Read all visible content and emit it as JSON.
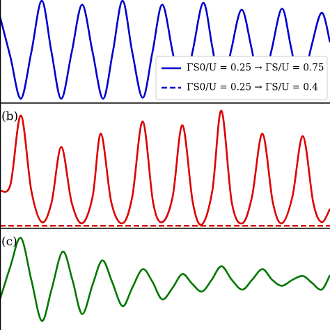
{
  "chart_data": [
    {
      "type": "line",
      "legend": "lower right",
      "xlim": [
        0,
        474
      ],
      "ylim": [
        0,
        1
      ],
      "x": [
        0,
        15,
        30,
        45,
        60,
        74,
        88,
        103,
        118,
        133,
        148,
        162,
        176,
        190,
        205,
        219,
        233,
        248,
        262,
        277,
        292,
        305,
        318,
        332,
        347,
        361,
        375,
        390,
        405,
        418,
        432,
        447,
        462,
        474
      ],
      "series": [
        {
          "name": "ΓS0/U = 0.25 → ΓS/U = 0.75",
          "color": "#0000cc",
          "dash": false,
          "values": [
            0.86,
            0.45,
            0.03,
            0.5,
            1.02,
            0.5,
            0.03,
            0.5,
            0.98,
            0.5,
            0.03,
            0.5,
            1.02,
            0.5,
            0.04,
            0.5,
            0.98,
            0.5,
            0.06,
            0.52,
            1.0,
            0.55,
            0.08,
            0.52,
            0.93,
            0.55,
            0.1,
            0.52,
            0.94,
            0.55,
            0.12,
            0.55,
            0.9,
            0.6
          ]
        },
        {
          "name": "ΓS0/U = 0.25 → ΓS/U = 0.4",
          "color": "#0000cc",
          "dash": true,
          "values": [
            null,
            null,
            null,
            null,
            null,
            null,
            null,
            null,
            null,
            null,
            null,
            null,
            null,
            null,
            null,
            null,
            null,
            null,
            null,
            null,
            null,
            null,
            null,
            null,
            null,
            null,
            null,
            null,
            null,
            null,
            null,
            null,
            null,
            null
          ]
        }
      ]
    },
    {
      "type": "line",
      "label": "(b)",
      "xlim": [
        0,
        474
      ],
      "ylim": [
        0,
        1
      ],
      "x": [
        0,
        15,
        30,
        45,
        60,
        74,
        88,
        103,
        118,
        133,
        145,
        160,
        176,
        190,
        205,
        220,
        233,
        248,
        262,
        277,
        290,
        305,
        318,
        333,
        348,
        362,
        377,
        392,
        405,
        420,
        435,
        450,
        462,
        474
      ],
      "series": [
        {
          "color": "#dd0000",
          "dash": false,
          "values": [
            0.3,
            0.35,
            0.92,
            0.3,
            0.04,
            0.2,
            0.66,
            0.2,
            0.03,
            0.25,
            0.77,
            0.2,
            0.03,
            0.25,
            0.87,
            0.2,
            0.04,
            0.25,
            0.84,
            0.2,
            0.02,
            0.3,
            0.96,
            0.2,
            0.03,
            0.25,
            0.77,
            0.2,
            0.03,
            0.25,
            0.75,
            0.2,
            0.04,
            0.15
          ]
        },
        {
          "color": "#dd0000",
          "dash": true,
          "values": [
            0.01,
            0.01,
            0.01,
            0.01,
            0.01,
            0.01,
            0.01,
            0.01,
            0.01,
            0.01,
            0.01,
            0.01,
            0.01,
            0.01,
            0.01,
            0.01,
            0.01,
            0.01,
            0.01,
            0.01,
            0.01,
            0.01,
            0.01,
            0.01,
            0.01,
            0.01,
            0.01,
            0.01,
            0.01,
            0.01,
            0.01,
            0.01,
            0.01,
            0.01
          ]
        }
      ]
    },
    {
      "type": "line",
      "label": "(c)",
      "xlim": [
        0,
        474
      ],
      "ylim": [
        0,
        1
      ],
      "x": [
        0,
        15,
        30,
        45,
        60,
        74,
        90,
        104,
        118,
        133,
        147,
        161,
        176,
        190,
        205,
        219,
        233,
        248,
        262,
        276,
        290,
        304,
        318,
        333,
        348,
        362,
        377,
        391,
        405,
        420,
        435,
        448,
        462,
        474
      ],
      "series": [
        {
          "color": "#007700",
          "dash": false,
          "values": [
            0.3,
            0.64,
            0.93,
            0.5,
            0.08,
            0.4,
            0.79,
            0.5,
            0.15,
            0.45,
            0.7,
            0.48,
            0.23,
            0.42,
            0.61,
            0.48,
            0.3,
            0.42,
            0.56,
            0.46,
            0.38,
            0.5,
            0.64,
            0.5,
            0.4,
            0.5,
            0.61,
            0.5,
            0.44,
            0.5,
            0.54,
            0.47,
            0.4,
            0.55
          ]
        }
      ]
    }
  ]
}
